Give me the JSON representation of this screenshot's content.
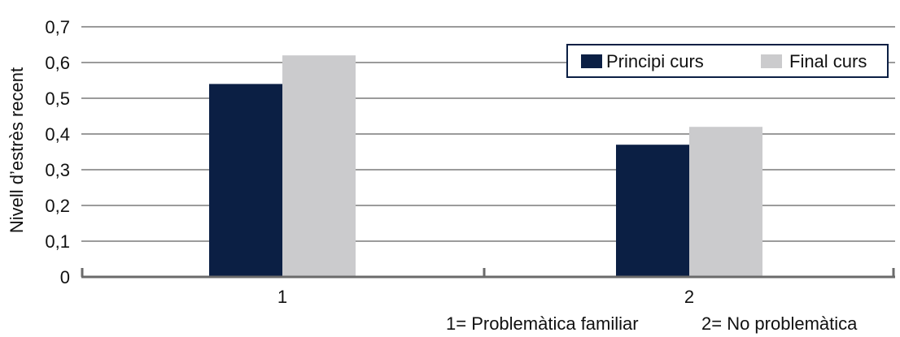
{
  "chart_data": {
    "type": "bar",
    "categories": [
      "1",
      "2"
    ],
    "series": [
      {
        "name": "Principi curs",
        "values": [
          0.54,
          0.37
        ],
        "color": "#0b1f44"
      },
      {
        "name": "Final curs",
        "values": [
          0.62,
          0.42
        ],
        "color": "#cbcbcd"
      }
    ],
    "ylabel": "Nivell d’estrès recent",
    "ylim": [
      0,
      0.7
    ],
    "yticks": [
      "0",
      "0,1",
      "0,2",
      "0,3",
      "0,4",
      "0,5",
      "0,6",
      "0,7"
    ],
    "grid": true,
    "legend_position": "top-right",
    "footnote_1": "1= Problemàtica familiar",
    "footnote_2": "2= No problemàtica"
  }
}
